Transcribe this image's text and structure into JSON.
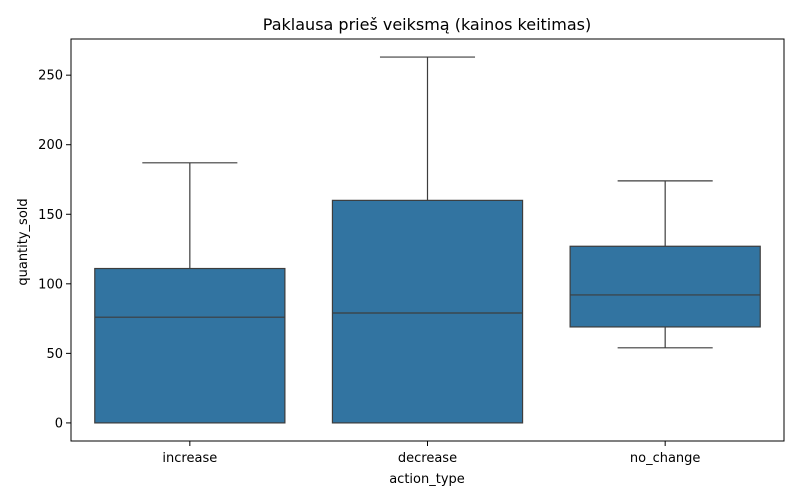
{
  "chart_data": {
    "type": "box",
    "title": "Paklausa prieš veiksmą (kainos keitimas)",
    "xlabel": "action_type",
    "ylabel": "quantity_sold",
    "ylim": [
      -13,
      276
    ],
    "yticks": [
      0,
      50,
      100,
      150,
      200,
      250
    ],
    "grid": false,
    "legend": "none",
    "colors": {
      "box": "#3274a1",
      "line": "#3d3d3d",
      "axis": "#000000"
    },
    "categories": [
      "increase",
      "decrease",
      "no_change"
    ],
    "boxes": [
      {
        "category": "increase",
        "min": 0,
        "q1": 0,
        "median": 76,
        "q3": 111,
        "max": 187
      },
      {
        "category": "decrease",
        "min": 0,
        "q1": 0,
        "median": 79,
        "q3": 160,
        "max": 263
      },
      {
        "category": "no_change",
        "min": 54,
        "q1": 69,
        "median": 92,
        "q3": 127,
        "max": 174
      }
    ]
  }
}
